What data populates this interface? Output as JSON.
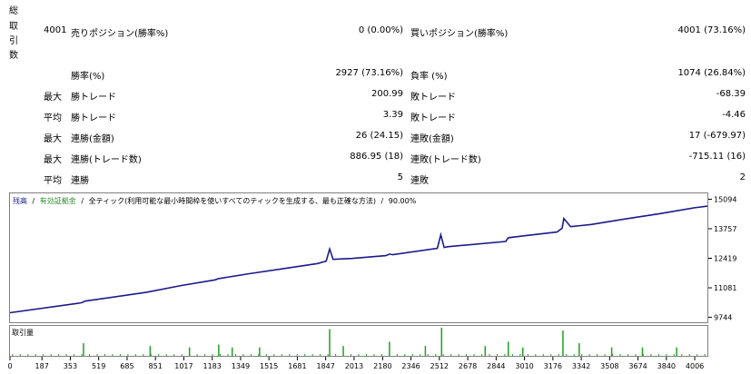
{
  "stats": {
    "side_label_chars": [
      "総",
      "取",
      "引",
      "数"
    ],
    "total_trades": "4001",
    "short_label": "売りポジション(勝率%)",
    "short_value": "0 (0.00%)",
    "long_label": "買いポジション(勝率%)",
    "long_value": "4001 (73.16%)",
    "rows": [
      {
        "prefix": "",
        "left_label": "勝率(%)",
        "left_value": "2927 (73.16%)",
        "right_label": "負率 (%)",
        "right_value": "1074 (26.84%)"
      },
      {
        "prefix": "最大",
        "left_label": "勝トレード",
        "left_value": "200.99",
        "right_label": "敗トレード",
        "right_value": "-68.39"
      },
      {
        "prefix": "平均",
        "left_label": "勝トレード",
        "left_value": "3.39",
        "right_label": "敗トレード",
        "right_value": "-4.46"
      },
      {
        "prefix": "最大",
        "left_label": "連勝(金額)",
        "left_value": "26 (24.15)",
        "right_label": "連敗(金額)",
        "right_value": "17 (-679.97)"
      },
      {
        "prefix": "最大",
        "left_label": "連勝(トレード数)",
        "left_value": "886.95 (18)",
        "right_label": "連敗(トレード数)",
        "right_value": "-715.11 (16)"
      },
      {
        "prefix": "平均",
        "left_label": "連勝",
        "left_value": "5",
        "right_label": "連敗",
        "right_value": "2"
      }
    ]
  },
  "chart_header": {
    "balance": "残高",
    "sep1": "/",
    "equity": "有効証拠金",
    "sep2": "/",
    "description": "全ティック(利用可能な最小時間枠を使いすべてのティックを生成する、最も正確な方法)",
    "sep3": "/",
    "quality": "90.00%"
  },
  "colors": {
    "balance": "#1a1a8c",
    "equity": "#2e8b2e",
    "volume": "#1fa01f",
    "frame": "#808080"
  },
  "volume_label": "取引量",
  "chart_data": {
    "type": "line",
    "title": "",
    "xlabel": "",
    "ylabel": "",
    "x_ticks": [
      0,
      187,
      353,
      519,
      685,
      851,
      1017,
      1183,
      1349,
      1515,
      1681,
      1847,
      2013,
      2180,
      2346,
      2512,
      2678,
      2844,
      3010,
      3176,
      3342,
      3508,
      3674,
      3840,
      4006
    ],
    "y_ticks": [
      15094,
      13757,
      12419,
      11081,
      9744
    ],
    "xlim": [
      0,
      4080
    ],
    "ylim": [
      9520,
      15360
    ],
    "series": [
      {
        "name": "残高",
        "x": [
          0,
          400,
          420,
          440,
          800,
          1000,
          1200,
          1221,
          1400,
          1600,
          1800,
          1850,
          1870,
          1890,
          2000,
          2200,
          2220,
          2240,
          2500,
          2520,
          2540,
          2560,
          2900,
          2915,
          3000,
          3200,
          3230,
          3240,
          3280,
          3400,
          3600,
          3800,
          4000,
          4080
        ],
        "y": [
          9950,
          10380,
          10410,
          10480,
          10880,
          11180,
          11440,
          11500,
          11720,
          11950,
          12180,
          12290,
          12840,
          12370,
          12410,
          12540,
          12610,
          12580,
          12870,
          13480,
          12910,
          12940,
          13180,
          13350,
          13430,
          13610,
          13780,
          14220,
          13850,
          13950,
          14200,
          14440,
          14700,
          14780
        ]
      }
    ],
    "volume": {
      "label": "取引量",
      "spikes": [
        {
          "x": 430,
          "h": 0.45
        },
        {
          "x": 820,
          "h": 0.35
        },
        {
          "x": 1050,
          "h": 0.3
        },
        {
          "x": 1221,
          "h": 0.4
        },
        {
          "x": 1300,
          "h": 0.3
        },
        {
          "x": 1460,
          "h": 0.3
        },
        {
          "x": 1870,
          "h": 0.95
        },
        {
          "x": 1950,
          "h": 0.35
        },
        {
          "x": 2220,
          "h": 0.5
        },
        {
          "x": 2430,
          "h": 0.35
        },
        {
          "x": 2525,
          "h": 1.0
        },
        {
          "x": 2780,
          "h": 0.35
        },
        {
          "x": 2915,
          "h": 0.5
        },
        {
          "x": 3000,
          "h": 0.3
        },
        {
          "x": 3235,
          "h": 0.9
        },
        {
          "x": 3330,
          "h": 0.45
        },
        {
          "x": 3520,
          "h": 0.3
        },
        {
          "x": 3700,
          "h": 0.3
        },
        {
          "x": 3900,
          "h": 0.3
        }
      ]
    }
  }
}
